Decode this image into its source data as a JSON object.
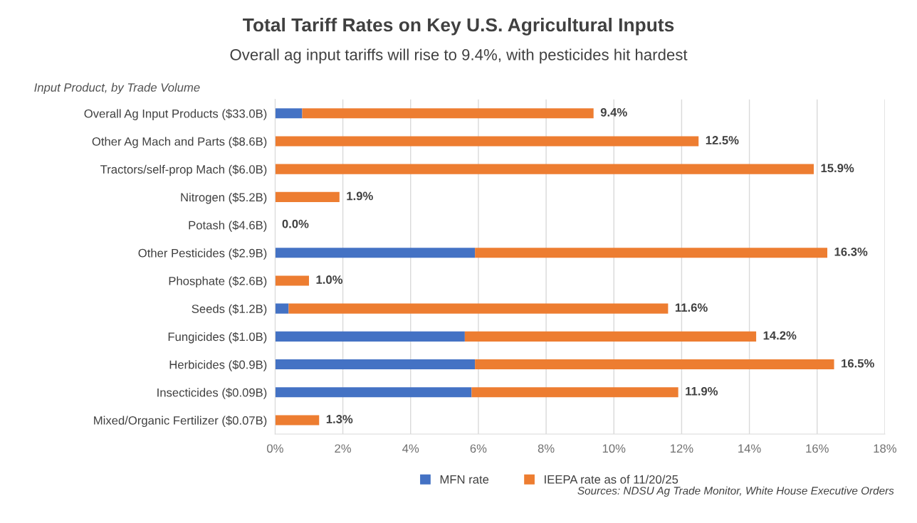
{
  "chart_data": {
    "type": "bar",
    "orientation": "horizontal",
    "stacked": true,
    "title": "Total Tariff Rates on Key U.S. Agricultural Inputs",
    "subtitle": "Overall ag input tariffs will rise to 9.4%, with pesticides hit hardest",
    "categories": [
      "Overall Ag Input Products ($33.0B)",
      "Other Ag Mach and Parts ($8.6B)",
      "Tractors/self-prop Mach ($6.0B)",
      "Nitrogen ($5.2B)",
      "Potash ($4.6B)",
      "Other Pesticides ($2.9B)",
      "Phosphate ($2.6B)",
      "Seeds ($1.2B)",
      "Fungicides ($1.0B)",
      "Herbicides ($0.9B)",
      "Insecticides ($0.09B)",
      "Mixed/Organic Fertilizer ($0.07B)"
    ],
    "series": [
      {
        "name": "MFN rate",
        "color": "#4472c4",
        "values": [
          0.8,
          0,
          0,
          0,
          0,
          5.9,
          0,
          0.4,
          5.6,
          5.9,
          5.8,
          0
        ]
      },
      {
        "name": "IEEPA rate as of 11/20/25",
        "color": "#ed7d31",
        "values": [
          8.6,
          12.5,
          15.9,
          1.9,
          0,
          10.4,
          1.0,
          11.2,
          8.6,
          10.6,
          6.1,
          1.3
        ]
      }
    ],
    "totals": [
      "9.4%",
      "12.5%",
      "15.9%",
      "1.9%",
      "0.0%",
      "16.3%",
      "1.0%",
      "11.6%",
      "14.2%",
      "16.5%",
      "11.9%",
      "1.3%"
    ],
    "xlim": [
      0,
      18
    ],
    "xticks": [
      {
        "value": 0,
        "label": "0%"
      },
      {
        "value": 2,
        "label": "2%"
      },
      {
        "value": 4,
        "label": "4%"
      },
      {
        "value": 6,
        "label": "6%"
      },
      {
        "value": 8,
        "label": "8%"
      },
      {
        "value": 10,
        "label": "10%"
      },
      {
        "value": 12,
        "label": "12%"
      },
      {
        "value": 14,
        "label": "14%"
      },
      {
        "value": 16,
        "label": "16%"
      },
      {
        "value": 18,
        "label": "18%"
      }
    ],
    "grid": "x",
    "legend": "bottom",
    "annotations": [
      "Input Product, by Trade Volume",
      "Sources: NDSU Ag Trade Monitor, White House Executive Orders"
    ]
  }
}
